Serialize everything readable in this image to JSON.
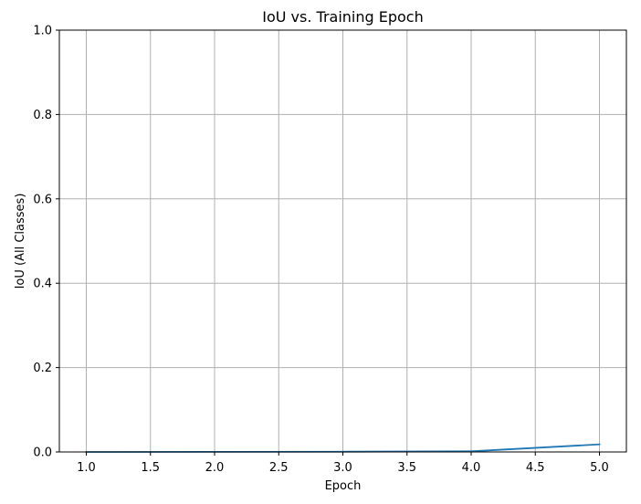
{
  "chart_data": {
    "type": "line",
    "title": "IoU vs. Training Epoch",
    "xlabel": "Epoch",
    "ylabel": "IoU (All Classes)",
    "xlim": [
      0.79,
      5.21
    ],
    "ylim": [
      0.0,
      1.0
    ],
    "grid": true,
    "x_ticks": [
      1.0,
      1.5,
      2.0,
      2.5,
      3.0,
      3.5,
      4.0,
      4.5,
      5.0
    ],
    "x_tick_labels": [
      "1.0",
      "1.5",
      "2.0",
      "2.5",
      "3.0",
      "3.5",
      "4.0",
      "4.5",
      "5.0"
    ],
    "y_ticks": [
      0.0,
      0.2,
      0.4,
      0.6,
      0.8,
      1.0
    ],
    "y_tick_labels": [
      "0.0",
      "0.2",
      "0.4",
      "0.6",
      "0.8",
      "1.0"
    ],
    "series": [
      {
        "color": "#1f77b4",
        "x": [
          1,
          2,
          3,
          4,
          5
        ],
        "y": [
          0.0,
          0.0003,
          0.0006,
          0.0015,
          0.018
        ]
      }
    ],
    "colors": {
      "grid": "#b0b0b0",
      "axis": "#000000",
      "background": "#ffffff"
    }
  }
}
